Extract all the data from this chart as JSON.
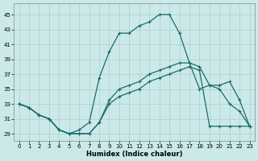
{
  "xlabel": "Humidex (Indice chaleur)",
  "xlim": [
    -0.5,
    23.5
  ],
  "ylim": [
    28.0,
    46.5
  ],
  "yticks": [
    29,
    31,
    33,
    35,
    37,
    39,
    41,
    43,
    45
  ],
  "xticks": [
    0,
    1,
    2,
    3,
    4,
    5,
    6,
    7,
    8,
    9,
    10,
    11,
    12,
    13,
    14,
    15,
    16,
    17,
    18,
    19,
    20,
    21,
    22,
    23
  ],
  "bg_color": "#cce9e9",
  "grid_color": "#aacfcf",
  "line_color": "#1a6b6b",
  "line_width": 0.9,
  "marker": "+",
  "markersize": 3,
  "markeredgewidth": 0.8,
  "curve1_x": [
    0,
    1,
    2,
    3,
    4,
    5,
    6,
    7,
    8,
    9,
    10,
    11,
    12,
    13,
    14,
    15,
    16,
    17,
    18,
    19,
    20,
    21,
    22,
    23
  ],
  "curve1_y": [
    33.0,
    32.5,
    31.5,
    31.0,
    29.5,
    29.0,
    29.0,
    29.0,
    30.5,
    33.5,
    35.0,
    35.5,
    36.0,
    37.0,
    37.5,
    38.0,
    38.5,
    38.5,
    38.0,
    35.5,
    35.5,
    36.0,
    33.5,
    30.0
  ],
  "curve2_x": [
    0,
    1,
    2,
    3,
    4,
    5,
    6,
    7,
    8,
    9,
    10,
    11,
    12,
    13,
    14,
    15,
    16,
    17,
    18,
    19,
    20,
    21,
    22,
    23
  ],
  "curve2_y": [
    33.0,
    32.5,
    31.5,
    31.0,
    29.5,
    29.0,
    29.0,
    29.0,
    30.5,
    33.0,
    34.0,
    34.5,
    35.0,
    36.0,
    36.5,
    37.0,
    37.5,
    38.0,
    37.5,
    30.0,
    30.0,
    30.0,
    30.0,
    30.0
  ],
  "curve3_x": [
    0,
    1,
    2,
    3,
    4,
    5,
    6,
    7,
    8,
    9,
    10,
    11,
    12,
    13,
    14,
    15,
    16,
    17,
    18,
    19,
    20,
    21,
    22,
    23
  ],
  "curve3_y": [
    33.0,
    32.5,
    31.5,
    31.0,
    29.5,
    29.0,
    29.5,
    30.5,
    36.5,
    40.0,
    42.5,
    42.5,
    43.5,
    44.0,
    45.0,
    45.0,
    42.5,
    38.5,
    35.0,
    35.5,
    35.0,
    33.0,
    32.0,
    30.0
  ]
}
